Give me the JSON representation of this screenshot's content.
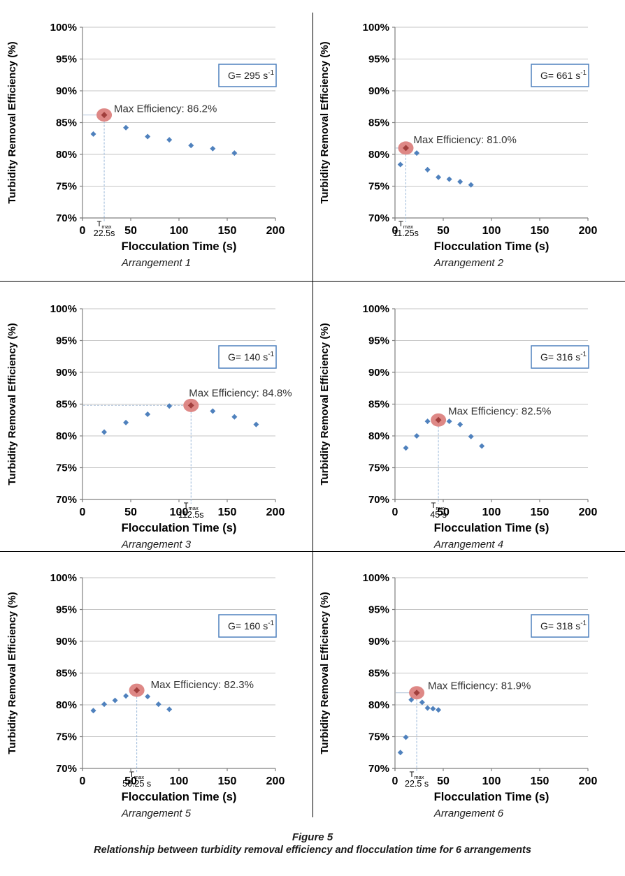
{
  "caption": {
    "title": "Figure 5",
    "subtitle": "Relationship between turbidity removal efficiency and flocculation time for 6 arrangements"
  },
  "axes": {
    "xlabel": "Flocculation Time (s)",
    "ylabel": "Turbidity Removal Efficiency (%)",
    "xlim": [
      0,
      200
    ],
    "ylim": [
      70,
      100
    ],
    "xticks": [
      0,
      50,
      100,
      150,
      200
    ],
    "yticks": [
      100,
      95,
      90,
      85,
      80,
      75,
      70
    ],
    "ytick_suffix": "%",
    "grid": "horizontal"
  },
  "colors": {
    "point": "#4F81BD",
    "max_ellipse": "#DB7E7C",
    "max_diamond": "#A13F3D",
    "dashed_line": "#9CB9D9",
    "guide_line": "#B9C9DD",
    "grid_line": "#C6C6C6",
    "axis_line": "#808080",
    "gbox_border": "#4F81BD",
    "annotation_text": "#333333",
    "divider": "#000000"
  },
  "chart_data": [
    {
      "type": "scatter",
      "label": "Arrangement 1",
      "g_prefix": "G= ",
      "g_value": "295",
      "g_unit": "s",
      "g_exponent": "-1",
      "max_label": "Max Efficiency: 86.2%",
      "tmax_symbol": "T",
      "tmax_sub": "max",
      "tmax_value_label": "22.5s",
      "tmax_x": 22.5,
      "max_point": {
        "x": 22.5,
        "y": 86.2
      },
      "points": [
        [
          11.25,
          83.2
        ],
        [
          22.5,
          86.2
        ],
        [
          45,
          84.2
        ],
        [
          67.5,
          82.8
        ],
        [
          90,
          82.3
        ],
        [
          112.5,
          81.4
        ],
        [
          135,
          80.9
        ],
        [
          157.5,
          80.2
        ]
      ],
      "max_index": 1,
      "guide_style": "solid",
      "ann_dx": 14,
      "ann_dy": -4
    },
    {
      "type": "scatter",
      "label": "Arrangement 2",
      "g_prefix": "G= ",
      "g_value": "661",
      "g_unit": "s",
      "g_exponent": "-1",
      "max_label": "Max Efficiency: 81.0%",
      "tmax_symbol": "T",
      "tmax_sub": "max",
      "tmax_value_label": "11.25s",
      "tmax_x": 11.25,
      "max_point": {
        "x": 11.25,
        "y": 81.0
      },
      "points": [
        [
          5.6,
          78.4
        ],
        [
          11.25,
          81.0
        ],
        [
          22.5,
          80.2
        ],
        [
          33.75,
          77.6
        ],
        [
          45,
          76.4
        ],
        [
          56.25,
          76.1
        ],
        [
          67.5,
          75.7
        ],
        [
          78.75,
          75.2
        ]
      ],
      "max_index": 1,
      "guide_style": "solid",
      "ann_dx": 11,
      "ann_dy": -7
    },
    {
      "type": "scatter",
      "label": "Arrangement 3",
      "g_prefix": "G= ",
      "g_value": "140",
      "g_unit": "s",
      "g_exponent": "-1",
      "max_label": "Max Efficiency: 84.8%",
      "tmax_symbol": "T",
      "tmax_sub": "max",
      "tmax_value_label": "112.5s",
      "tmax_x": 112.5,
      "max_point": {
        "x": 112.5,
        "y": 84.8
      },
      "points": [
        [
          22.5,
          80.6
        ],
        [
          45,
          82.1
        ],
        [
          67.5,
          83.4
        ],
        [
          90,
          84.7
        ],
        [
          112.5,
          84.8
        ],
        [
          135,
          83.9
        ],
        [
          157.5,
          83.0
        ],
        [
          180,
          81.8
        ]
      ],
      "max_index": 4,
      "guide_style": "dashed",
      "ann_dx": -3,
      "ann_dy": -13
    },
    {
      "type": "scatter",
      "label": "Arrangement 4",
      "g_prefix": "G= ",
      "g_value": "316",
      "g_unit": "s",
      "g_exponent": "-1",
      "max_label": "Max Efficiency: 82.5%",
      "tmax_symbol": "T",
      "tmax_sub": "max",
      "tmax_value_label": "45 s",
      "tmax_x": 45,
      "max_point": {
        "x": 45,
        "y": 82.5
      },
      "points": [
        [
          11.25,
          78.1
        ],
        [
          22.5,
          80.0
        ],
        [
          33.75,
          82.3
        ],
        [
          45,
          82.5
        ],
        [
          56.25,
          82.3
        ],
        [
          67.5,
          81.8
        ],
        [
          78.75,
          79.9
        ],
        [
          90,
          78.4
        ]
      ],
      "max_index": 3,
      "guide_style": "none",
      "ann_dx": 14,
      "ann_dy": -8
    },
    {
      "type": "scatter",
      "label": "Arrangement 5",
      "g_prefix": "G= ",
      "g_value": "160",
      "g_unit": "s",
      "g_exponent": "-1",
      "max_label": "Max Efficiency: 82.3%",
      "tmax_symbol": "T",
      "tmax_sub": "max",
      "tmax_value_label": "56.25 s",
      "tmax_x": 56.25,
      "max_point": {
        "x": 56.25,
        "y": 82.3
      },
      "points": [
        [
          11.25,
          79.1
        ],
        [
          22.5,
          80.1
        ],
        [
          33.75,
          80.7
        ],
        [
          45,
          81.4
        ],
        [
          56.25,
          82.3
        ],
        [
          67.5,
          81.3
        ],
        [
          78.75,
          80.1
        ],
        [
          90,
          79.3
        ]
      ],
      "max_index": 4,
      "guide_style": "none",
      "ann_dx": 20,
      "ann_dy": -3
    },
    {
      "type": "scatter",
      "label": "Arrangement 6",
      "g_prefix": "G= ",
      "g_value": "318",
      "g_unit": "s",
      "g_exponent": "-1",
      "max_label": "Max Efficiency: 81.9%",
      "tmax_symbol": "T",
      "tmax_sub": "max",
      "tmax_value_label": "22.5 s",
      "tmax_x": 22.5,
      "max_point": {
        "x": 22.5,
        "y": 81.9
      },
      "points": [
        [
          5.625,
          72.5
        ],
        [
          11.25,
          74.9
        ],
        [
          16.875,
          80.8
        ],
        [
          22.5,
          81.9
        ],
        [
          28.125,
          80.4
        ],
        [
          33.75,
          79.5
        ],
        [
          39.375,
          79.4
        ],
        [
          45,
          79.2
        ]
      ],
      "max_index": 3,
      "guide_style": "solid",
      "ann_dx": 16,
      "ann_dy": -5
    }
  ]
}
